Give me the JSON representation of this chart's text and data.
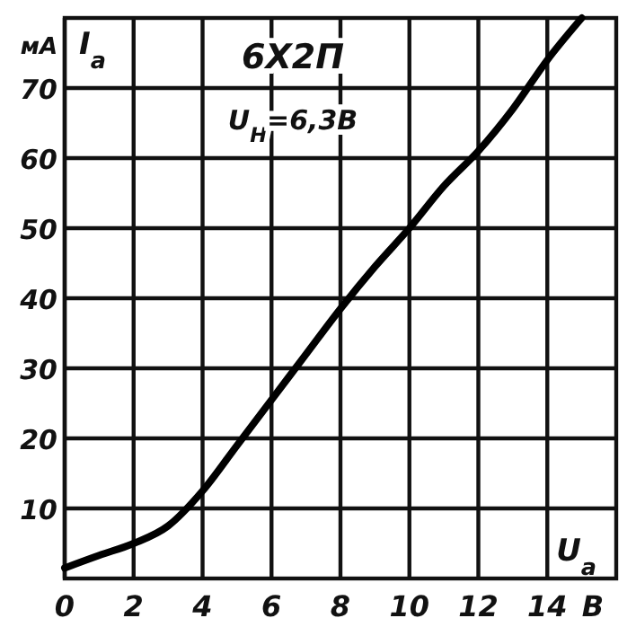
{
  "chart_data": {
    "type": "line",
    "title": "6Х2П",
    "subtitle": "U$_{Н}$=6,3В",
    "xlabel": "В",
    "ylabel": "мА",
    "annotations": [
      "I$_{а}$",
      "U$_{а}$"
    ],
    "x": [
      0,
      1,
      2,
      3,
      4,
      5,
      6,
      7,
      8,
      9,
      10,
      11,
      12,
      13,
      14,
      15
    ],
    "series": [
      {
        "color": "#000000",
        "values": [
          1.5,
          3.3,
          5,
          7.5,
          12.5,
          19,
          25.5,
          32,
          38.5,
          44.5,
          50,
          56,
          61,
          67,
          74,
          80
        ]
      }
    ],
    "xlim": [
      0,
      16
    ],
    "ylim": [
      0,
      80
    ],
    "xticks": [
      0,
      2,
      4,
      6,
      8,
      10,
      12,
      14
    ],
    "yticks": [
      10,
      20,
      30,
      40,
      50,
      60,
      70
    ],
    "grid": true,
    "marker": "none",
    "line_style": "solid"
  }
}
